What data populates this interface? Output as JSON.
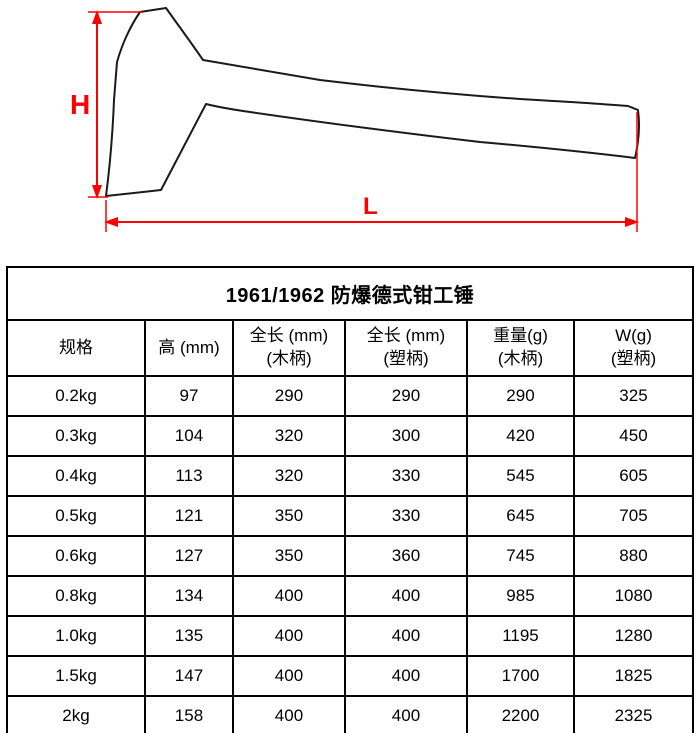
{
  "diagram": {
    "h_label": "H",
    "l_label": "L",
    "dimension_color": "#ff0000",
    "outline_color": "#1a1a1a"
  },
  "table": {
    "title": "1961/1962  防爆德式钳工锤",
    "headers": [
      {
        "line1": "规格",
        "line2": ""
      },
      {
        "line1": "高 (mm)",
        "line2": ""
      },
      {
        "line1": "全长 (mm)",
        "line2": "(木柄)"
      },
      {
        "line1": "全长 (mm)",
        "line2": "(塑柄)"
      },
      {
        "line1": "重量(g)",
        "line2": "(木柄)"
      },
      {
        "line1": "W(g)",
        "line2": "(塑柄)"
      }
    ],
    "rows": [
      [
        "0.2kg",
        "97",
        "290",
        "290",
        "290",
        "325"
      ],
      [
        "0.3kg",
        "104",
        "320",
        "300",
        "420",
        "450"
      ],
      [
        "0.4kg",
        "113",
        "320",
        "330",
        "545",
        "605"
      ],
      [
        "0.5kg",
        "121",
        "350",
        "330",
        "645",
        "705"
      ],
      [
        "0.6kg",
        "127",
        "350",
        "360",
        "745",
        "880"
      ],
      [
        "0.8kg",
        "134",
        "400",
        "400",
        "985",
        "1080"
      ],
      [
        "1.0kg",
        "135",
        "400",
        "400",
        "1195",
        "1280"
      ],
      [
        "1.5kg",
        "147",
        "400",
        "400",
        "1700",
        "1825"
      ],
      [
        "2kg",
        "158",
        "400",
        "400",
        "2200",
        "2325"
      ]
    ]
  }
}
